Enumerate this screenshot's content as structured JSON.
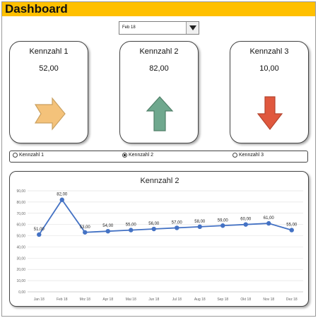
{
  "header": {
    "title": "Dashboard",
    "color": "#FFC000"
  },
  "month_select": {
    "value": "Feb 18"
  },
  "cards": [
    {
      "title": "Kennzahl  1",
      "value": "52,00",
      "icon": "arrow-right-icon",
      "color": "#F4C27A"
    },
    {
      "title": "Kennzahl  2",
      "value": "82,00",
      "icon": "arrow-up-icon",
      "color": "#6FA88E"
    },
    {
      "title": "Kennzahl  3",
      "value": "10,00",
      "icon": "arrow-down-icon",
      "color": "#E0583E"
    }
  ],
  "radios": [
    {
      "label": "Kennzahl 1",
      "checked": false
    },
    {
      "label": "Kennzahl 2",
      "checked": true
    },
    {
      "label": "Kennzahl 3",
      "checked": false
    }
  ],
  "chart_data": {
    "type": "line",
    "title": "Kennzahl  2",
    "categories": [
      "Jan 18",
      "Feb 18",
      "Mrz 18",
      "Apr 18",
      "Mai 18",
      "Jun 18",
      "Jul 18",
      "Aug 18",
      "Sep 18",
      "Okt 18",
      "Nov 18",
      "Dez 18"
    ],
    "values": [
      51,
      82,
      53,
      54,
      55,
      56,
      57,
      58,
      59,
      60,
      61,
      55
    ],
    "data_labels": [
      "51,00",
      "82,00",
      "53,00",
      "54,00",
      "55,00",
      "56,00",
      "57,00",
      "58,00",
      "59,00",
      "60,00",
      "61,00",
      "55,00"
    ],
    "yticks": [
      "0,00",
      "10,00",
      "20,00",
      "30,00",
      "40,00",
      "50,00",
      "60,00",
      "70,00",
      "80,00",
      "90,00"
    ],
    "ylim": [
      0,
      90
    ],
    "grid": true,
    "line_color": "#4472C4"
  }
}
